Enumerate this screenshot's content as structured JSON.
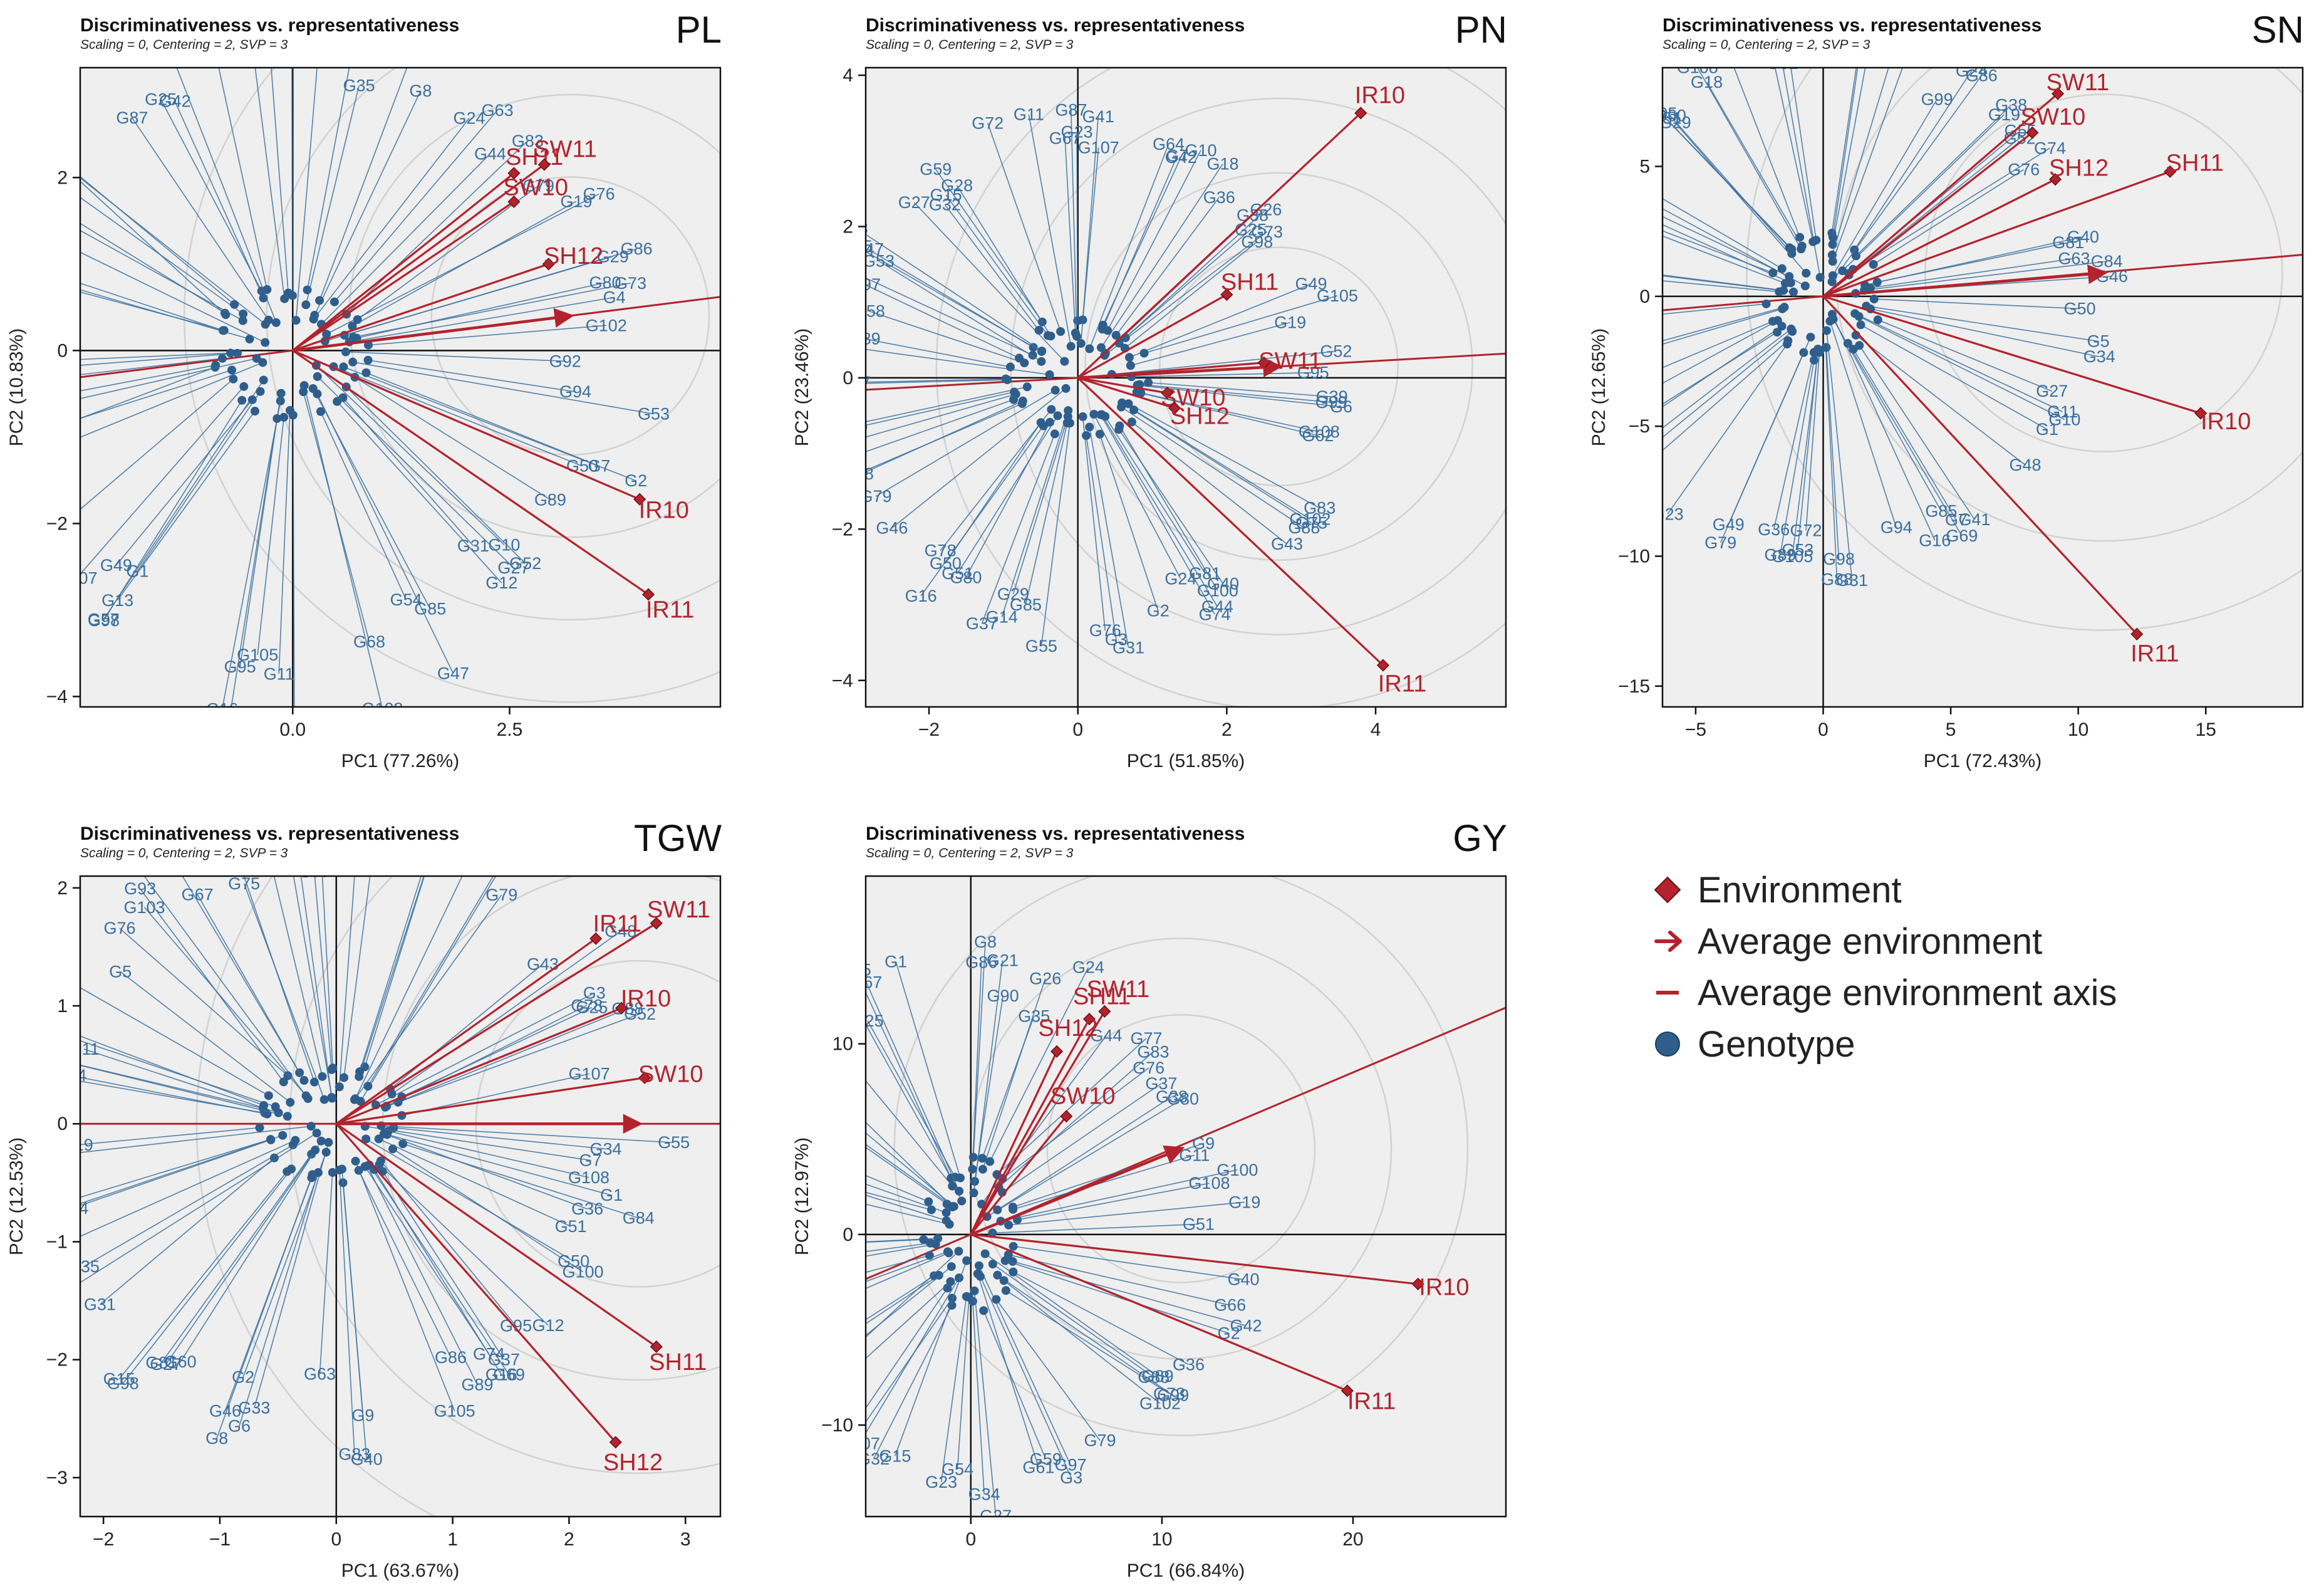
{
  "colors": {
    "environment": "#b3232d",
    "genotype": "#2f5e8c",
    "genotype_label": "#3a6f9e",
    "panel_bg": "#efefef",
    "circle": "#d2d2d2"
  },
  "legend": {
    "items": [
      {
        "label": "Environment",
        "marker": "diamond"
      },
      {
        "label": "Average environment",
        "marker": "arrow"
      },
      {
        "label": "Average environment axis",
        "marker": "line"
      },
      {
        "label": "Genotype",
        "marker": "dot"
      }
    ]
  },
  "chart_data": [
    {
      "type": "scatter",
      "trait": "PL",
      "title": "Discriminativeness vs. representativeness",
      "subtitle": "Scaling = 0, Centering = 2, SVP = 3",
      "xlabel": "PC1 (77.26%)",
      "ylabel": "PC2 (10.83%)",
      "xlim": [
        -2.45,
        4.93
      ],
      "ylim": [
        -4.12,
        3.27
      ],
      "xticks": [
        0.0,
        2.5
      ],
      "xtick_labels": [
        "0.0",
        "2.5"
      ],
      "yticks": [
        -4,
        -2,
        0,
        2
      ],
      "ytick_labels": [
        "−4",
        "−2",
        "0",
        "2"
      ],
      "avg_axis_end": [
        4.93,
        0.62
      ],
      "avg_arrow_end": [
        3.2,
        0.4
      ],
      "circle_radii": [
        1.6,
        2.55,
        3.5,
        4.45
      ],
      "environments": [
        {
          "label": "SH11",
          "x": 2.55,
          "y": 2.05
        },
        {
          "label": "SW11",
          "x": 2.9,
          "y": 2.15
        },
        {
          "label": "SW10",
          "x": 2.55,
          "y": 1.72
        },
        {
          "label": "SH12",
          "x": 2.95,
          "y": 1.0
        },
        {
          "label": "IR10",
          "x": 4.0,
          "y": -1.72
        },
        {
          "label": "IR11",
          "x": 4.1,
          "y": -2.82
        }
      ],
      "genotypes": [
        "G102",
        "G29",
        "G80",
        "G86",
        "G19",
        "G76",
        "G79",
        "G83",
        "G63",
        "G44",
        "G8",
        "G24",
        "G97",
        "G40",
        "G74",
        "G35",
        "G99",
        "G103",
        "G62",
        "G59",
        "G25",
        "G42",
        "G72",
        "G87",
        "G61",
        "G77",
        "G69",
        "G78",
        "G64",
        "G60",
        "G26",
        "G75",
        "G67",
        "G6",
        "G32",
        "G28",
        "G15",
        "G100",
        "G81",
        "G17",
        "G5",
        "G48",
        "G37",
        "G98",
        "G57",
        "G107",
        "G49",
        "G1",
        "G13",
        "G16",
        "G3",
        "G11",
        "G88",
        "G95",
        "G105",
        "G108",
        "G68",
        "G54",
        "G85",
        "G12",
        "G47",
        "G31",
        "G52",
        "G27",
        "G10",
        "G89",
        "G50",
        "G2",
        "G7",
        "G53",
        "G94",
        "G92",
        "G4",
        "G73"
      ]
    },
    {
      "type": "scatter",
      "trait": "PN",
      "title": "Discriminativeness vs. representativeness",
      "subtitle": "Scaling = 0, Centering = 2, SVP = 3",
      "xlabel": "PC1 (51.85%)",
      "ylabel": "PC2 (23.46%)",
      "xlim": [
        -2.85,
        5.75
      ],
      "ylim": [
        -4.35,
        4.1
      ],
      "xticks": [
        -2,
        0,
        2,
        4
      ],
      "xtick_labels": [
        "−2",
        "0",
        "2",
        "4"
      ],
      "yticks": [
        -4,
        -2,
        0,
        2,
        4
      ],
      "ytick_labels": [
        "−4",
        "−2",
        "0",
        "2",
        "4"
      ],
      "avg_axis_end": [
        5.75,
        0.32
      ],
      "avg_arrow_end": [
        2.7,
        0.15
      ],
      "circle_radii": [
        1.6,
        2.6,
        3.6,
        4.6
      ],
      "environments": [
        {
          "label": "IR10",
          "x": 3.8,
          "y": 3.5
        },
        {
          "label": "SH11",
          "x": 2.0,
          "y": 1.1
        },
        {
          "label": "SW11",
          "x": 2.5,
          "y": 0.2
        },
        {
          "label": "SW10",
          "x": 1.2,
          "y": -0.2
        },
        {
          "label": "SH12",
          "x": 1.3,
          "y": -0.4
        },
        {
          "label": "IR11",
          "x": 4.1,
          "y": -3.8
        }
      ],
      "genotypes": [
        "G52",
        "G19",
        "G49",
        "G98",
        "G105",
        "G38",
        "G25",
        "G73",
        "G26",
        "G36",
        "G18",
        "G64",
        "G10",
        "G7",
        "G42",
        "G107",
        "G41",
        "G23",
        "G67",
        "G87",
        "G72",
        "G11",
        "G59",
        "G28",
        "G15",
        "G32",
        "G27",
        "G47",
        "G8",
        "G33",
        "G35",
        "G58",
        "G97",
        "G53",
        "G89",
        "G17",
        "G94",
        "G93",
        "G63",
        "G84",
        "G60",
        "G34",
        "G54",
        "G68",
        "G79",
        "G46",
        "G78",
        "G50",
        "G16",
        "G37",
        "G80",
        "G14",
        "G51",
        "G55",
        "G29",
        "G85",
        "G76",
        "G31",
        "G3",
        "G2",
        "G24",
        "G81",
        "G44",
        "G40",
        "G74",
        "G43",
        "G100",
        "G75",
        "G88",
        "G83",
        "G102",
        "G108",
        "G62",
        "G6",
        "G99",
        "G39",
        "G95"
      ]
    },
    {
      "type": "scatter",
      "trait": "SN",
      "title": "Discriminativeness vs. representativeness",
      "subtitle": "Scaling = 0, Centering = 2, SVP = 3",
      "xlabel": "PC1 (72.43%)",
      "ylabel": "PC2 (12.65%)",
      "xlim": [
        -6.3,
        18.8
      ],
      "ylim": [
        -15.8,
        8.8
      ],
      "xticks": [
        -5,
        0,
        5,
        10,
        15
      ],
      "xtick_labels": [
        "−5",
        "0",
        "5",
        "10",
        "15"
      ],
      "yticks": [
        -15,
        -10,
        -5,
        0,
        5
      ],
      "ytick_labels": [
        "−15",
        "−10",
        "−5",
        "0",
        "5"
      ],
      "avg_axis_end": [
        18.8,
        1.6
      ],
      "avg_arrow_end": [
        11.0,
        0.9
      ],
      "circle_radii": [
        7.0,
        10.5,
        14.0
      ],
      "environments": [
        {
          "label": "SW11",
          "x": 9.2,
          "y": 7.8
        },
        {
          "label": "SW10",
          "x": 8.2,
          "y": 6.3
        },
        {
          "label": "SH12",
          "x": 9.1,
          "y": 4.5
        },
        {
          "label": "SH11",
          "x": 13.6,
          "y": 4.8
        },
        {
          "label": "IR10",
          "x": 14.8,
          "y": -4.5
        },
        {
          "label": "IR11",
          "x": 12.3,
          "y": -13.0
        }
      ],
      "genotypes": [
        "G84",
        "G63",
        "G40",
        "G76",
        "G55",
        "G74",
        "G52",
        "G38",
        "G24",
        "G86",
        "G19",
        "G99",
        "G80",
        "G26",
        "G3",
        "G83",
        "G77",
        "G8",
        "G62",
        "G97",
        "G42",
        "G108",
        "G18",
        "G60",
        "G95",
        "G51",
        "G29",
        "G32",
        "G103",
        "G59",
        "G28",
        "G2",
        "G6",
        "G102",
        "G33",
        "G14",
        "G107",
        "G12",
        "G87",
        "G57",
        "G37",
        "G67",
        "G15",
        "G9",
        "G23",
        "G17",
        "G100",
        "G79",
        "G49",
        "G89",
        "G105",
        "G53",
        "G36",
        "G72",
        "G88",
        "G98",
        "G31",
        "G16",
        "G94",
        "G69",
        "G85",
        "G7",
        "G41",
        "G48",
        "G1",
        "G11",
        "G10",
        "G5",
        "G27",
        "G34",
        "G50",
        "G46",
        "G81"
      ]
    },
    {
      "type": "scatter",
      "trait": "TGW",
      "title": "Discriminativeness vs. representativeness",
      "subtitle": "Scaling = 0, Centering = 2, SVP = 3",
      "xlabel": "PC1 (63.67%)",
      "ylabel": "PC2 (12.53%)",
      "xlim": [
        -2.2,
        3.3
      ],
      "ylim": [
        -3.33,
        2.1
      ],
      "xticks": [
        -2,
        -1,
        0,
        1,
        2,
        3
      ],
      "xtick_labels": [
        "−2",
        "−1",
        "0",
        "1",
        "2",
        "3"
      ],
      "yticks": [
        -3,
        -2,
        -1,
        0,
        1,
        2
      ],
      "ytick_labels": [
        "−3",
        "−2",
        "−1",
        "0",
        "1",
        "2"
      ],
      "avg_axis_end": [
        3.3,
        0.0
      ],
      "avg_arrow_end": [
        2.6,
        0.0
      ],
      "circle_radii": [
        1.4,
        2.2,
        3.0,
        3.8
      ],
      "environments": [
        {
          "label": "IR11",
          "x": 2.23,
          "y": 1.57
        },
        {
          "label": "SW11",
          "x": 2.75,
          "y": 1.7
        },
        {
          "label": "IR10",
          "x": 2.45,
          "y": 0.98
        },
        {
          "label": "SW10",
          "x": 2.65,
          "y": 0.39
        },
        {
          "label": "SH11",
          "x": 2.75,
          "y": -1.89
        },
        {
          "label": "SH12",
          "x": 2.4,
          "y": -2.7
        }
      ],
      "genotypes": [
        "G107",
        "G52",
        "G88",
        "G78",
        "G48",
        "G3",
        "G25",
        "G56",
        "G43",
        "G32",
        "G99",
        "G41",
        "G97",
        "G79",
        "G20",
        "G18",
        "G61",
        "G13",
        "G77",
        "G73",
        "G64",
        "G72",
        "G87",
        "G67",
        "G75",
        "G76",
        "G53",
        "G57",
        "G93",
        "G103",
        "G5",
        "G59",
        "G68",
        "G11",
        "G58",
        "G80",
        "G102",
        "G14",
        "G49",
        "G19",
        "G44",
        "G28",
        "G47",
        "G17",
        "G24",
        "G31",
        "G35",
        "G85",
        "G15",
        "G81",
        "G98",
        "G60",
        "G27",
        "G33",
        "G46",
        "G8",
        "G2",
        "G6",
        "G83",
        "G63",
        "G9",
        "G40",
        "G86",
        "G105",
        "G16",
        "G89",
        "G37",
        "G74",
        "G69",
        "G12",
        "G95",
        "G100",
        "G50",
        "G84",
        "G51",
        "G1",
        "G34",
        "G36",
        "G108",
        "G7",
        "G55"
      ]
    },
    {
      "type": "scatter",
      "trait": "GY",
      "title": "Discriminativeness vs. representativeness",
      "subtitle": "Scaling = 0, Centering = 2, SVP = 3",
      "xlabel": "PC1 (66.84%)",
      "ylabel": "PC2 (12.97%)",
      "xlim": [
        -5.5,
        28.0
      ],
      "ylim": [
        -14.8,
        18.8
      ],
      "xticks": [
        0,
        10,
        20
      ],
      "xtick_labels": [
        "0",
        "10",
        "20"
      ],
      "yticks": [
        -10,
        0,
        10
      ],
      "ytick_labels": [
        "−10",
        "0",
        "10"
      ],
      "avg_axis_end": [
        28.0,
        11.9
      ],
      "avg_arrow_end": [
        11.0,
        4.5
      ],
      "circle_radii": [
        7.0,
        11.0,
        15.0
      ],
      "environments": [
        {
          "label": "SH11",
          "x": 6.2,
          "y": 11.3
        },
        {
          "label": "SW11",
          "x": 7.0,
          "y": 11.7
        },
        {
          "label": "SH12",
          "x": 4.5,
          "y": 9.6
        },
        {
          "label": "SW10",
          "x": 5.0,
          "y": 6.2
        },
        {
          "label": "IR10",
          "x": 23.4,
          "y": -2.6
        },
        {
          "label": "IR11",
          "x": 19.7,
          "y": -8.2
        }
      ],
      "genotypes": [
        "G108",
        "G11",
        "G100",
        "G9",
        "G80",
        "G38",
        "G83",
        "G37",
        "G77",
        "G76",
        "G44",
        "G24",
        "G26",
        "G35",
        "G90",
        "G86",
        "G21",
        "G8",
        "G1",
        "G25",
        "G55",
        "G46",
        "G67",
        "G48",
        "G95",
        "G20",
        "G103",
        "G49",
        "G28",
        "G47",
        "G50",
        "G14",
        "G5",
        "G105",
        "G64",
        "G16",
        "G57",
        "G10",
        "G31",
        "G12",
        "G17",
        "G94",
        "G93",
        "G53",
        "G7",
        "G41",
        "G32",
        "G107",
        "G85",
        "G54",
        "G15",
        "G23",
        "G34",
        "G27",
        "G61",
        "G59",
        "G97",
        "G3",
        "G79",
        "G99",
        "G102",
        "G73",
        "G88",
        "G89",
        "G36",
        "G42",
        "G2",
        "G66",
        "G51",
        "G40",
        "G19"
      ]
    }
  ]
}
